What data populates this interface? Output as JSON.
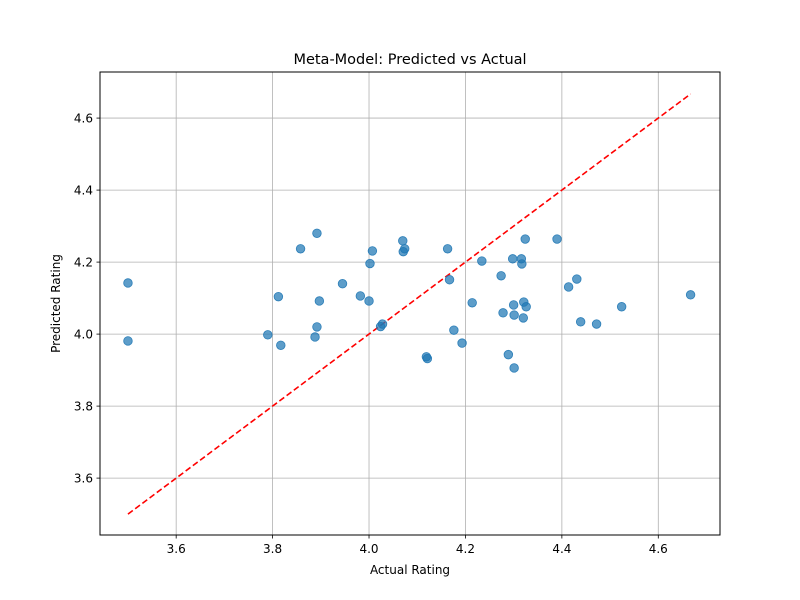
{
  "chart_data": {
    "type": "scatter",
    "title": "Meta-Model: Predicted vs Actual",
    "xlabel": "Actual Rating",
    "ylabel": "Predicted Rating",
    "xlim": [
      3.442,
      4.728
    ],
    "ylim": [
      3.442,
      4.728
    ],
    "xticks": [
      3.6,
      3.8,
      4.0,
      4.2,
      4.4,
      4.6
    ],
    "yticks": [
      3.6,
      3.8,
      4.0,
      4.2,
      4.4,
      4.6
    ],
    "xtick_labels": [
      "3.6",
      "3.8",
      "4.0",
      "4.2",
      "4.4",
      "4.6"
    ],
    "ytick_labels": [
      "3.6",
      "3.8",
      "4.0",
      "4.2",
      "4.4",
      "4.6"
    ],
    "grid": true,
    "point_color": "#1f77b4",
    "reference_line": {
      "x": [
        3.5,
        4.667
      ],
      "y": [
        3.5,
        4.667
      ],
      "color": "#ff0000",
      "style": "dashed"
    },
    "points": [
      {
        "x": 3.5,
        "y": 4.142
      },
      {
        "x": 3.5,
        "y": 3.981
      },
      {
        "x": 3.79,
        "y": 3.998
      },
      {
        "x": 3.812,
        "y": 4.104
      },
      {
        "x": 3.817,
        "y": 3.969
      },
      {
        "x": 3.858,
        "y": 4.237
      },
      {
        "x": 3.888,
        "y": 3.992
      },
      {
        "x": 3.892,
        "y": 4.28
      },
      {
        "x": 3.892,
        "y": 4.02
      },
      {
        "x": 3.897,
        "y": 4.092
      },
      {
        "x": 3.945,
        "y": 4.14
      },
      {
        "x": 3.982,
        "y": 4.106
      },
      {
        "x": 4.0,
        "y": 4.092
      },
      {
        "x": 4.002,
        "y": 4.196
      },
      {
        "x": 4.007,
        "y": 4.231
      },
      {
        "x": 4.024,
        "y": 4.021
      },
      {
        "x": 4.028,
        "y": 4.028
      },
      {
        "x": 4.07,
        "y": 4.259
      },
      {
        "x": 4.071,
        "y": 4.229
      },
      {
        "x": 4.074,
        "y": 4.237
      },
      {
        "x": 4.119,
        "y": 3.937
      },
      {
        "x": 4.121,
        "y": 3.932
      },
      {
        "x": 4.163,
        "y": 4.237
      },
      {
        "x": 4.167,
        "y": 4.151
      },
      {
        "x": 4.176,
        "y": 4.011
      },
      {
        "x": 4.193,
        "y": 3.975
      },
      {
        "x": 4.214,
        "y": 4.087
      },
      {
        "x": 4.234,
        "y": 4.203
      },
      {
        "x": 4.274,
        "y": 4.162
      },
      {
        "x": 4.278,
        "y": 4.059
      },
      {
        "x": 4.289,
        "y": 3.943
      },
      {
        "x": 4.298,
        "y": 4.209
      },
      {
        "x": 4.3,
        "y": 4.081
      },
      {
        "x": 4.301,
        "y": 4.053
      },
      {
        "x": 4.301,
        "y": 3.906
      },
      {
        "x": 4.316,
        "y": 4.209
      },
      {
        "x": 4.317,
        "y": 4.195
      },
      {
        "x": 4.32,
        "y": 4.045
      },
      {
        "x": 4.321,
        "y": 4.089
      },
      {
        "x": 4.324,
        "y": 4.264
      },
      {
        "x": 4.326,
        "y": 4.076
      },
      {
        "x": 4.39,
        "y": 4.264
      },
      {
        "x": 4.414,
        "y": 4.131
      },
      {
        "x": 4.431,
        "y": 4.153
      },
      {
        "x": 4.439,
        "y": 4.034
      },
      {
        "x": 4.472,
        "y": 4.028
      },
      {
        "x": 4.524,
        "y": 4.076
      },
      {
        "x": 4.667,
        "y": 4.109
      }
    ]
  }
}
